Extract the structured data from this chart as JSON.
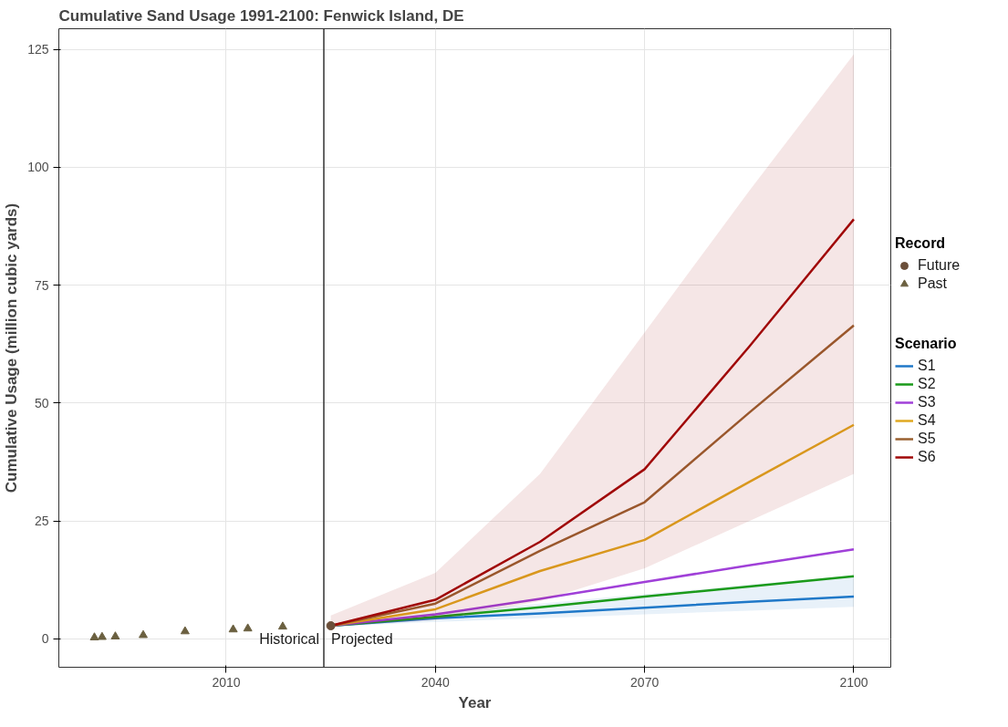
{
  "chart_data": {
    "type": "line",
    "title": "Cumulative Sand Usage 1991-2100: Fenwick Island, DE",
    "xlabel": "Year",
    "ylabel": "Cumulative Usage (million cubic yards)",
    "legend_title": "Scenario",
    "xlim": [
      1986,
      2105.3
    ],
    "ylim": [
      -6,
      129.4
    ],
    "xticks": [
      2010,
      2040,
      2070,
      2100
    ],
    "yticks": [
      0,
      25,
      50,
      75,
      100,
      125
    ],
    "grid": true,
    "legend": "right",
    "x": [
      2025,
      2040,
      2055,
      2070,
      2085,
      2100
    ],
    "series": [
      {
        "name": "S1",
        "color": "#1f78c8",
        "values": [
          2.8,
          4.4,
          5.4,
          6.6,
          7.9,
          9.0
        ],
        "lower": [
          2.6,
          3.6,
          4.4,
          5.2,
          6.0,
          6.8
        ],
        "upper": [
          3.2,
          5.5,
          7.5,
          9.5,
          11.5,
          13.5
        ]
      },
      {
        "name": "S2",
        "color": "#1a9a1a",
        "values": [
          2.8,
          4.7,
          6.7,
          9.0,
          11.1,
          13.3
        ]
      },
      {
        "name": "S3",
        "color": "#a040d8",
        "values": [
          2.8,
          5.2,
          8.5,
          12.1,
          15.6,
          19.0
        ]
      },
      {
        "name": "S4",
        "color": "#e0a820",
        "values": [
          2.8,
          6.3,
          14.4,
          21.0,
          33.3,
          45.4
        ]
      },
      {
        "name": "S5",
        "color": "#9a6030",
        "values": [
          2.8,
          7.5,
          18.7,
          29.0,
          48.0,
          66.5
        ]
      },
      {
        "name": "S6",
        "color": "#a00808",
        "values": [
          2.8,
          8.3,
          20.6,
          36.0,
          62.0,
          89.0
        ],
        "lower": [
          2.6,
          4.0,
          8.0,
          15.0,
          25.0,
          35.0
        ],
        "upper": [
          5.0,
          14.0,
          35.0,
          65.0,
          95.0,
          124.0
        ]
      },
      {
        "name": "Future",
        "type": "scatter",
        "marker": "circle",
        "color": "#6b4f3a",
        "x": [
          2025
        ],
        "values": [
          2.8
        ]
      },
      {
        "name": "Past",
        "type": "scatter",
        "marker": "triangle",
        "color": "#6b6040",
        "x": [
          1991.1,
          1992.2,
          1994.1,
          1998.1,
          2004.1,
          2011.0,
          2013.1,
          2018.1
        ],
        "values": [
          0.3,
          0.4,
          0.5,
          0.8,
          1.6,
          2.0,
          2.2,
          2.6
        ]
      }
    ],
    "ref_lines": [
      {
        "axis": "x",
        "value": 2024,
        "color": "#333333"
      }
    ],
    "annotations": [
      "Record",
      "Historical",
      "Projected"
    ]
  }
}
